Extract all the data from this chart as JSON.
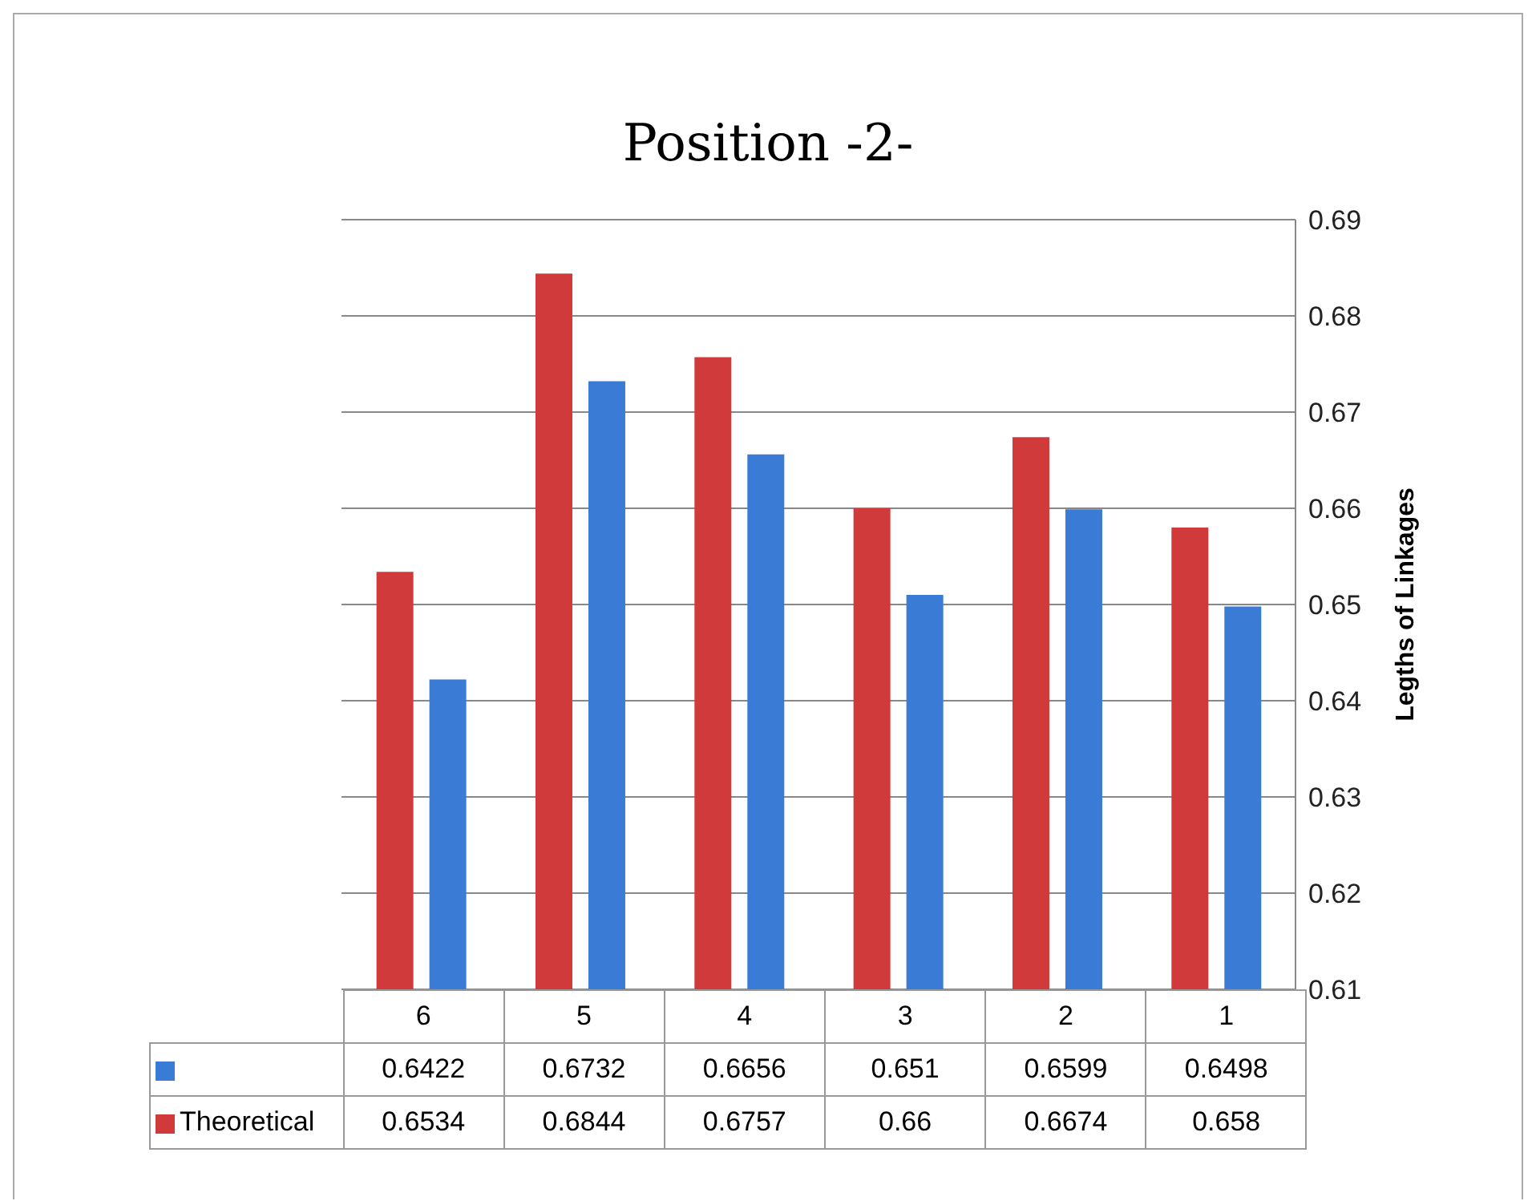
{
  "chart_data": {
    "type": "bar",
    "title": "Position -2-",
    "ylabel": "Legths of Linkages",
    "categories": [
      "6",
      "5",
      "4",
      "3",
      "2",
      "1"
    ],
    "series": [
      {
        "name": "Theoretical",
        "color": "#d03a3a",
        "values": [
          0.6534,
          0.6844,
          0.6757,
          0.66,
          0.6674,
          0.658
        ]
      },
      {
        "color": "#3a7bd5",
        "values": [
          0.6422,
          0.6732,
          0.6656,
          0.651,
          0.6599,
          0.6498
        ]
      }
    ],
    "ylim": [
      0.61,
      0.69
    ],
    "yticks": [
      0.61,
      0.62,
      0.63,
      0.64,
      0.65,
      0.66,
      0.67,
      0.68,
      0.69
    ],
    "grid": "y",
    "legend": "bottom",
    "data_labels": true
  }
}
